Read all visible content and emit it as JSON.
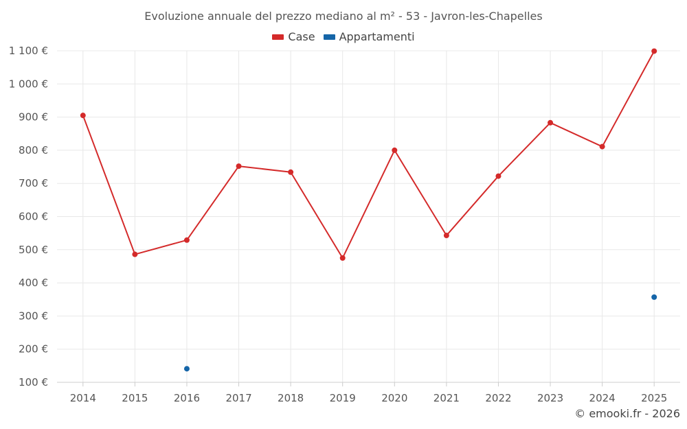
{
  "chart_data": {
    "type": "line",
    "title": "Evoluzione annuale del prezzo mediano al m² - 53 - Javron-les-Chapelles",
    "x": [
      "2014",
      "2015",
      "2016",
      "2017",
      "2018",
      "2019",
      "2020",
      "2021",
      "2022",
      "2023",
      "2024",
      "2025"
    ],
    "series": [
      {
        "name": "Case",
        "color": "#d42a2a",
        "values": [
          905,
          486,
          529,
          752,
          734,
          475,
          800,
          543,
          722,
          883,
          811,
          1099
        ]
      },
      {
        "name": "Appartamenti",
        "color": "#1565a8",
        "values": [
          null,
          null,
          141,
          null,
          null,
          null,
          null,
          null,
          null,
          null,
          null,
          357
        ]
      }
    ],
    "ylim": [
      100,
      1100
    ],
    "yticks": [
      100,
      200,
      300,
      400,
      500,
      600,
      700,
      800,
      900,
      1000,
      1100
    ],
    "ytick_labels": [
      "100 €",
      "200 €",
      "300 €",
      "400 €",
      "500 €",
      "600 €",
      "700 €",
      "800 €",
      "900 €",
      "1 000 €",
      "1 100 €"
    ],
    "grid": true,
    "legend": "top-center"
  },
  "credit": "© emooki.fr - 2026"
}
